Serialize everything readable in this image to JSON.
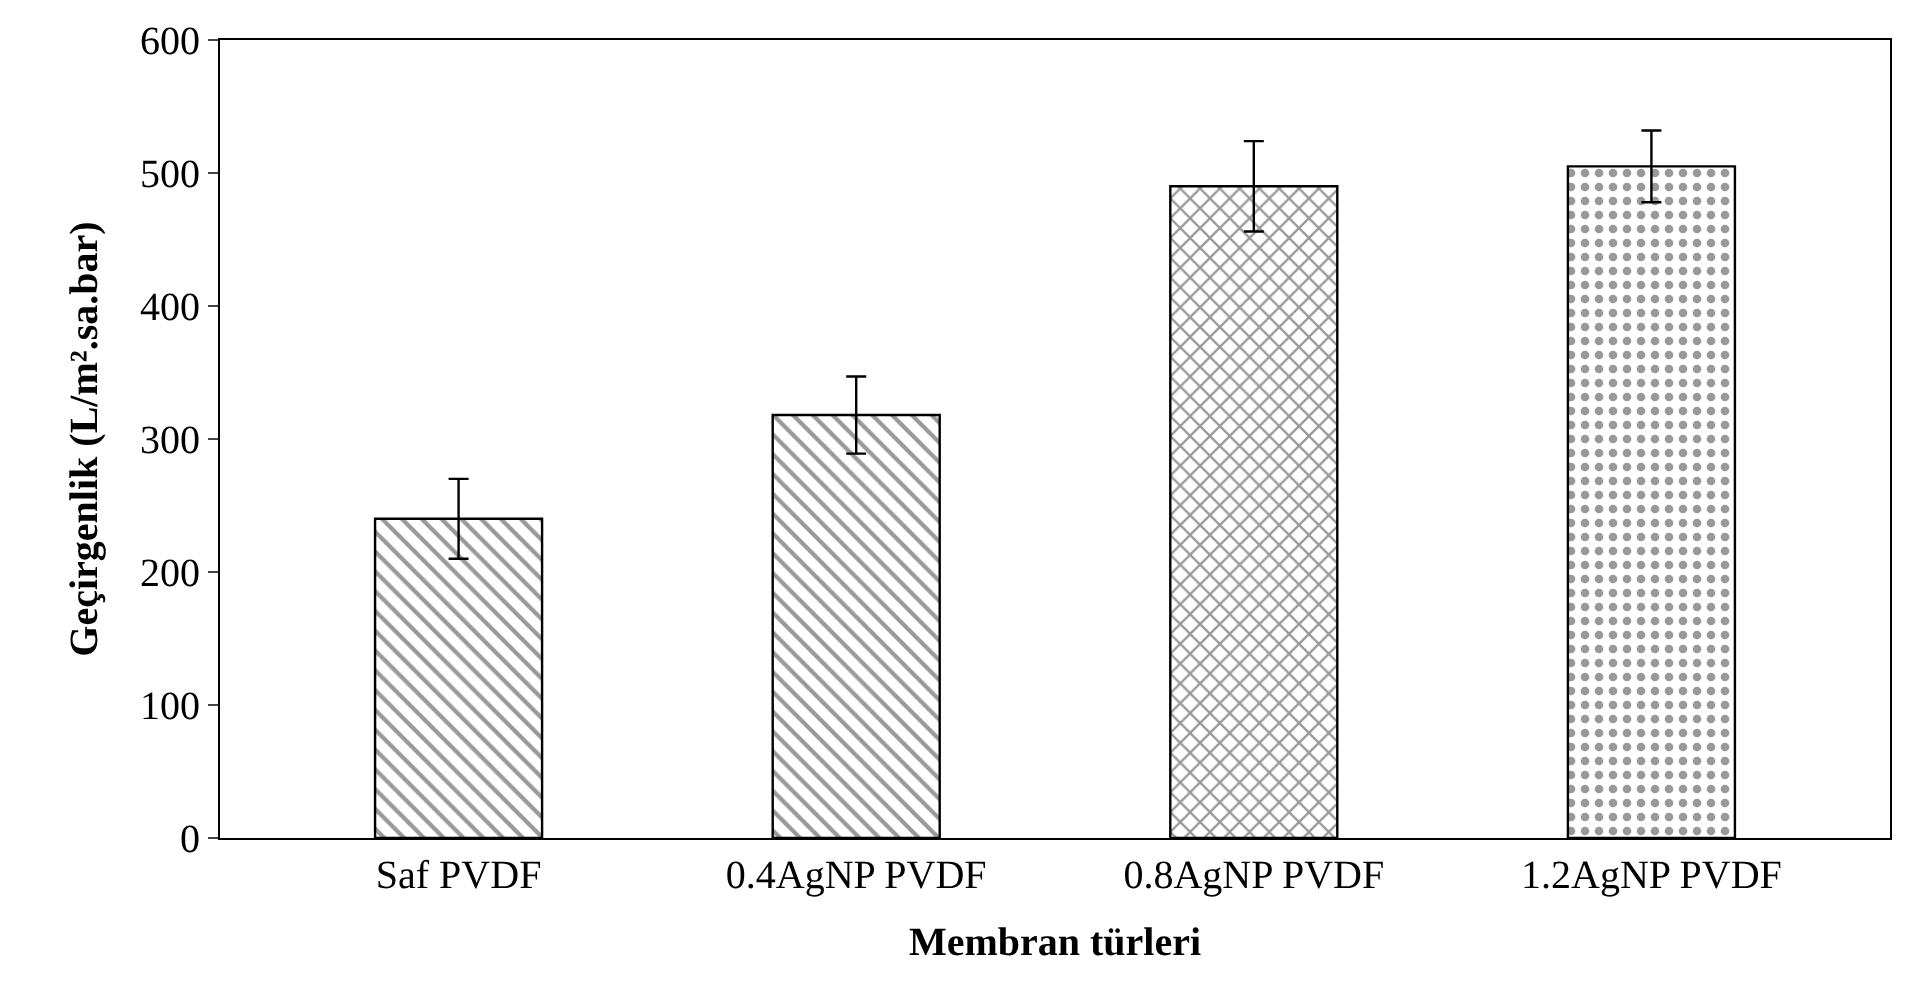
{
  "chart_data": {
    "type": "bar",
    "xlabel": "Membran türleri",
    "ylabel": "Geçirgenlik (L/m².sa.bar)",
    "categories": [
      "Saf PVDF",
      "0.4AgNP PVDF",
      "0.8AgNP PVDF",
      "1.2AgNP PVDF"
    ],
    "values": [
      240,
      318,
      490,
      505
    ],
    "errors": [
      30,
      29,
      34,
      27
    ],
    "ylim": [
      0,
      600
    ],
    "yticks": [
      0,
      100,
      200,
      300,
      400,
      500,
      600
    ]
  }
}
